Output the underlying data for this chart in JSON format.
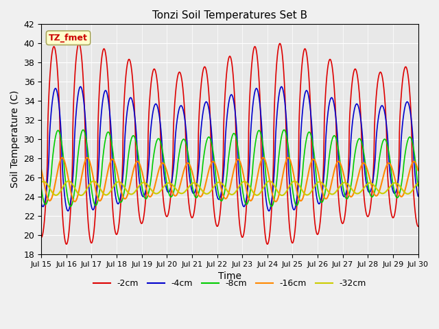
{
  "title": "Tonzi Soil Temperatures Set B",
  "xlabel": "Time",
  "ylabel": "Soil Temperature (C)",
  "ylim": [
    18,
    42
  ],
  "xlim": [
    0,
    15
  ],
  "yticks": [
    18,
    20,
    22,
    24,
    26,
    28,
    30,
    32,
    34,
    36,
    38,
    40,
    42
  ],
  "xtick_labels": [
    "Jul 15",
    "Jul 16",
    "Jul 17",
    "Jul 18",
    "Jul 19",
    "Jul 20",
    "Jul 21",
    "Jul 22",
    "Jul 23",
    "Jul 24",
    "Jul 25",
    "Jul 26",
    "Jul 27",
    "Jul 28",
    "Jul 29",
    "Jul 30"
  ],
  "bg_color": "#e8e8e8",
  "fig_bg_color": "#f0f0f0",
  "lines": {
    "-2cm": {
      "color": "#dd0000",
      "lw": 1.2
    },
    "-4cm": {
      "color": "#0000cc",
      "lw": 1.2
    },
    "-8cm": {
      "color": "#00cc00",
      "lw": 1.2
    },
    "-16cm": {
      "color": "#ff8800",
      "lw": 1.5
    },
    "-32cm": {
      "color": "#cccc00",
      "lw": 1.5
    }
  },
  "legend_order": [
    "-2cm",
    "-4cm",
    "-8cm",
    "-16cm",
    "-32cm"
  ],
  "annotation_text": "TZ_fmet",
  "annotation_color": "#cc0000",
  "annotation_bg": "#ffffcc",
  "annotation_border": "#aaa860"
}
